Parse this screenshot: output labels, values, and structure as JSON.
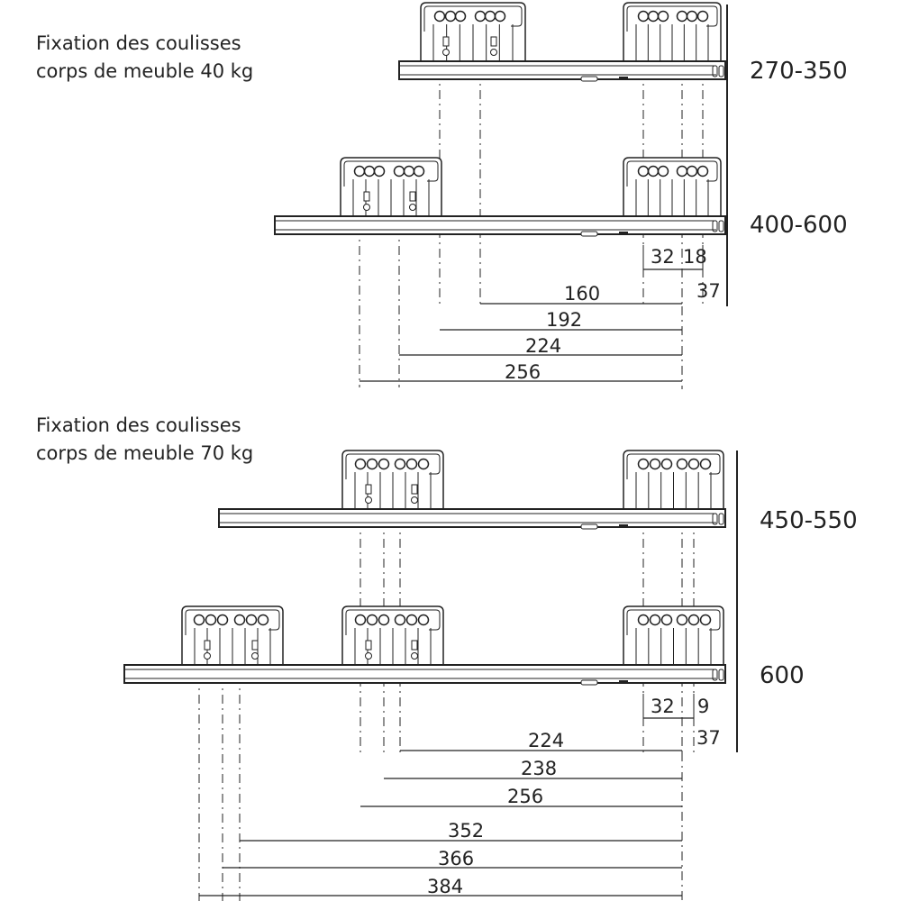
{
  "sections": [
    {
      "title_line1": "Fixation des coulisses",
      "title_line2": "corps de meuble 40 kg",
      "rail_labels": [
        "270-350",
        "400-600"
      ],
      "small_dims": [
        "32",
        "18",
        "37"
      ],
      "dims": [
        "160",
        "192",
        "224",
        "256"
      ]
    },
    {
      "title_line1": "Fixation des coulisses",
      "title_line2": "corps de meuble 70 kg",
      "rail_labels": [
        "450-550",
        "600"
      ],
      "small_dims": [
        "32",
        "9",
        "37"
      ],
      "dims": [
        "224",
        "238",
        "256",
        "352",
        "366",
        "384"
      ]
    }
  ],
  "colors": {
    "line": "#222222"
  }
}
